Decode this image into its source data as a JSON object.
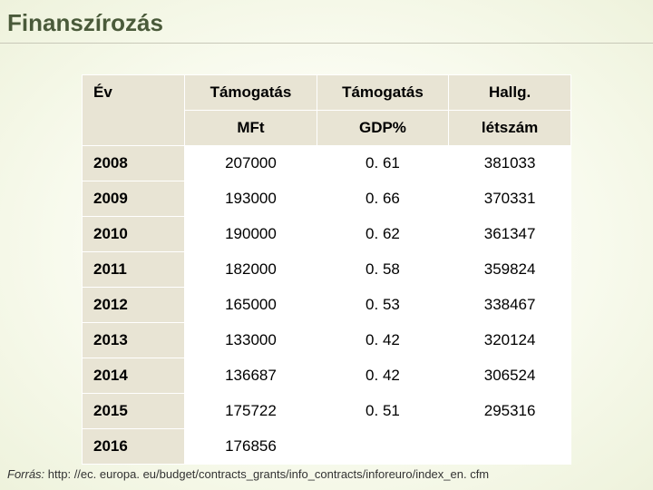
{
  "title": "Finanszírozás",
  "table": {
    "headers": {
      "year_top": "Év",
      "year_bottom": "",
      "col_a_top": "Támogatás",
      "col_a_bottom": "MFt",
      "col_b_top": "Támogatás",
      "col_b_bottom": "GDP%",
      "col_c_top": "Hallg.",
      "col_c_bottom": "létszám"
    },
    "rows": [
      {
        "year": "2008",
        "a": "207000",
        "b": "0. 61",
        "c": "381033"
      },
      {
        "year": "2009",
        "a": "193000",
        "b": "0. 66",
        "c": "370331"
      },
      {
        "year": "2010",
        "a": "190000",
        "b": "0. 62",
        "c": "361347"
      },
      {
        "year": "2011",
        "a": "182000",
        "b": "0. 58",
        "c": "359824"
      },
      {
        "year": "2012",
        "a": "165000",
        "b": "0. 53",
        "c": "338467"
      },
      {
        "year": "2013",
        "a": "133000",
        "b": "0. 42",
        "c": "320124"
      },
      {
        "year": "2014",
        "a": "136687",
        "b": "0. 42",
        "c": "306524"
      },
      {
        "year": "2015",
        "a": "175722",
        "b": "0. 51",
        "c": "295316"
      },
      {
        "year": "2016",
        "a": "176856",
        "b": "",
        "c": ""
      }
    ],
    "col_widths": {
      "year": "21%",
      "a": "27%",
      "b": "27%",
      "c": "25%"
    }
  },
  "source": {
    "label": "Forrás:",
    "text": " http: //ec. europa. eu/budget/contracts_grants/info_contracts/inforeuro/index_en. cfm"
  },
  "palette": {
    "title_color": "#4a5a3a",
    "header_bg": "#e8e4d4",
    "cell_bg": "#ffffff"
  }
}
